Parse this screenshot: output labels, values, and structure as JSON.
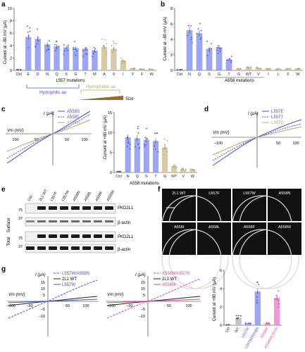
{
  "colors": {
    "blue": "#3f52d6",
    "bar_blue": "#8b96ee",
    "olive": "#b8a46a",
    "tan": "#cfc29a",
    "pink": "#e0409a",
    "pink_bar": "#f08acb",
    "gray_bar": "#9a9a9a",
    "black": "#222222",
    "brown": "#9c6a2a"
  },
  "panels": {
    "a": {
      "letter": "a",
      "ylabel": "Current at –80 mV (μA)",
      "xlabel": "L557 mutations",
      "ticks": [
        "0",
        "2",
        "4",
        "6",
        "8",
        "10"
      ],
      "categories": [
        "Ctrl",
        "E",
        "D",
        "N",
        "Q",
        "S",
        "G",
        "T",
        "M",
        "A",
        "V",
        "I",
        "Y",
        "F",
        "W"
      ],
      "values": [
        0.1,
        5.4,
        5.1,
        4.2,
        3.9,
        3.7,
        3.6,
        3.5,
        3.2,
        3.8,
        3.5,
        1.6,
        0.3,
        0.2,
        0.2
      ],
      "hydrophilic_label": "Hydrophilic aa",
      "hydrophobic_label": "Hydrophobic aa",
      "size_label": "Size"
    },
    "b": {
      "letter": "b",
      "ylabel": "Current at –80 mV (μA)",
      "xlabel": "A558 mutations",
      "ticks": [
        "0",
        "2",
        "4",
        "6",
        "8"
      ],
      "categories": [
        "Ctrl",
        "N",
        "Q",
        "S",
        "G",
        "T",
        "G",
        "WT",
        "V",
        "I",
        "L",
        "F",
        "W"
      ],
      "values": [
        0.1,
        5.2,
        4.8,
        2.8,
        3.0,
        1.4,
        0.2,
        0.4,
        0.3,
        0.2,
        0.2,
        0.2,
        0.2
      ]
    },
    "c": {
      "letter": "c",
      "ivlabel_y": "I (μA)",
      "ivlabel_x": "Vm (mV)",
      "iv_ticks_x": [
        "100",
        "50",
        "50",
        "100"
      ],
      "legend": [
        "A558S",
        "A558T",
        "A558G"
      ],
      "bar_ylabel": "Current at +80 mV (μA)",
      "bar_ticks": [
        "0",
        "5",
        "10",
        "15"
      ],
      "bar_xlabel": "A558 mutations",
      "categories": [
        "Ctrl",
        "N",
        "Q",
        "S",
        "T",
        "G",
        "WT",
        "V",
        "W"
      ],
      "values": [
        0.3,
        8.8,
        8.6,
        8.2,
        7.9,
        6.3,
        1.6,
        0.8,
        0.7
      ]
    },
    "d": {
      "letter": "d",
      "ivlabel_y": "I (μA)",
      "ivlabel_x": "Vm (mV)",
      "iv_ticks_x": [
        "–100",
        "50",
        "100"
      ],
      "legend": [
        "L557E",
        "L557T",
        "L557G"
      ]
    },
    "e": {
      "letter": "e",
      "lanes": [
        "Ctrl",
        "2L1 WT",
        "L557F",
        "L557W",
        "A558N",
        "A558L",
        "A558F",
        "A558W"
      ],
      "surface_label": "Surface",
      "total_label": "Total",
      "row_labels": [
        "PKD2L1",
        "β-actin",
        "PKD2L1",
        "β-actin"
      ],
      "markers": [
        "75",
        "37",
        "75",
        "37"
      ]
    },
    "f": {
      "letter": "f",
      "tiles": [
        "2L1 WT",
        "L557F",
        "L557W",
        "A558N",
        "A558I",
        "A558L",
        "A558F",
        "A558W"
      ]
    },
    "g": {
      "letter": "g",
      "left_ylabel": "I (μA)",
      "left_xlabel": "Vm (mV)",
      "left_legend": [
        "L557W/A558N",
        "2L1 WT",
        "L557W"
      ],
      "left_yticks": [
        "15",
        "10",
        "5",
        "–5",
        "–10"
      ],
      "left_xticks": [
        "–100",
        "–50",
        "50",
        "100"
      ],
      "mid_ylabel": "I (μA)",
      "mid_xlabel": "Vm (mV)",
      "mid_legend": [
        "A558W/L557N",
        "2L1 WT",
        "A558W"
      ],
      "mid_yticks": [
        "15",
        "10",
        "5",
        "–5",
        "–10"
      ],
      "mid_xticks": [
        "–100",
        "–50",
        "50",
        "100"
      ],
      "bar_ylabel": "Current at +80 mV (μA)",
      "bar_ticks": [
        "0",
        "2",
        "4",
        "6"
      ],
      "categories": [
        "Ctrl",
        "WT",
        "L557W",
        "L557W/A558N",
        "A558W",
        "A558W/L557N"
      ],
      "values": [
        0.05,
        0.8,
        0.2,
        3.7,
        0.2,
        3.0
      ]
    }
  },
  "chart_data": [
    {
      "type": "bar",
      "title": "",
      "xlabel": "L557 mutations",
      "ylabel": "Current at –80 mV (μA)",
      "ylim": [
        0,
        10
      ],
      "categories": [
        "Ctrl",
        "E",
        "D",
        "N",
        "Q",
        "S",
        "G",
        "T",
        "M",
        "A",
        "V",
        "I",
        "Y",
        "F",
        "W"
      ],
      "values": [
        0.1,
        5.4,
        5.1,
        4.2,
        3.9,
        3.7,
        3.6,
        3.5,
        3.2,
        3.8,
        3.5,
        1.6,
        0.3,
        0.2,
        0.2
      ]
    },
    {
      "type": "bar",
      "title": "",
      "xlabel": "A558 mutations",
      "ylabel": "Current at –80 mV (μA)",
      "ylim": [
        0,
        8
      ],
      "categories": [
        "Ctrl",
        "N",
        "Q",
        "S",
        "G",
        "T",
        "G",
        "WT",
        "V",
        "I",
        "L",
        "F",
        "W"
      ],
      "values": [
        0.1,
        5.2,
        4.8,
        2.8,
        3.0,
        1.4,
        0.2,
        0.4,
        0.3,
        0.2,
        0.2,
        0.2,
        0.2
      ]
    },
    {
      "type": "bar",
      "title": "",
      "xlabel": "A558 mutations",
      "ylabel": "Current at +80 mV (μA)",
      "ylim": [
        0,
        15
      ],
      "categories": [
        "Ctrl",
        "N",
        "Q",
        "S",
        "T",
        "G",
        "WT",
        "V",
        "W"
      ],
      "values": [
        0.3,
        8.8,
        8.6,
        8.2,
        7.9,
        6.3,
        1.6,
        0.8,
        0.7
      ]
    },
    {
      "type": "bar",
      "title": "",
      "xlabel": "",
      "ylabel": "Current at +80 mV (μA)",
      "ylim": [
        0,
        6
      ],
      "categories": [
        "Ctrl",
        "WT",
        "L557W",
        "L557W/A558N",
        "A558W",
        "A558W/L557N"
      ],
      "values": [
        0.05,
        0.8,
        0.2,
        3.7,
        0.2,
        3.0
      ]
    }
  ]
}
